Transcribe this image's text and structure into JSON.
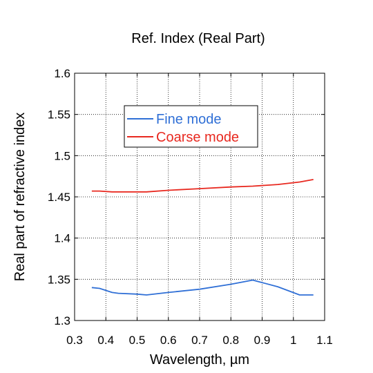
{
  "chart_data": {
    "type": "line",
    "title": "Ref. Index (Real Part)",
    "xlabel": "Wavelength, µm",
    "ylabel": "Real part of refractive index",
    "xlim": [
      0.3,
      1.1
    ],
    "ylim": [
      1.3,
      1.6
    ],
    "xticks": [
      "0.3",
      "0.4",
      "0.5",
      "0.6",
      "0.7",
      "0.8",
      "0.9",
      "1",
      "1.1"
    ],
    "yticks": [
      "1.3",
      "1.35",
      "1.4",
      "1.45",
      "1.5",
      "1.55",
      "1.6"
    ],
    "grid": true,
    "legend_position": "top-center",
    "series": [
      {
        "name": "Fine mode",
        "color": "#2f6fd6",
        "x": [
          0.355,
          0.38,
          0.42,
          0.44,
          0.5,
          0.53,
          0.6,
          0.7,
          0.8,
          0.87,
          0.95,
          1.02,
          1.064
        ],
        "y": [
          1.34,
          1.339,
          1.334,
          1.333,
          1.332,
          1.331,
          1.334,
          1.338,
          1.344,
          1.349,
          1.341,
          1.331,
          1.331
        ]
      },
      {
        "name": "Coarse mode",
        "color": "#e8281f",
        "x": [
          0.355,
          0.38,
          0.42,
          0.44,
          0.5,
          0.53,
          0.6,
          0.7,
          0.8,
          0.87,
          0.95,
          1.02,
          1.064
        ],
        "y": [
          1.457,
          1.457,
          1.456,
          1.456,
          1.456,
          1.456,
          1.458,
          1.46,
          1.462,
          1.463,
          1.465,
          1.468,
          1.471
        ]
      }
    ]
  }
}
